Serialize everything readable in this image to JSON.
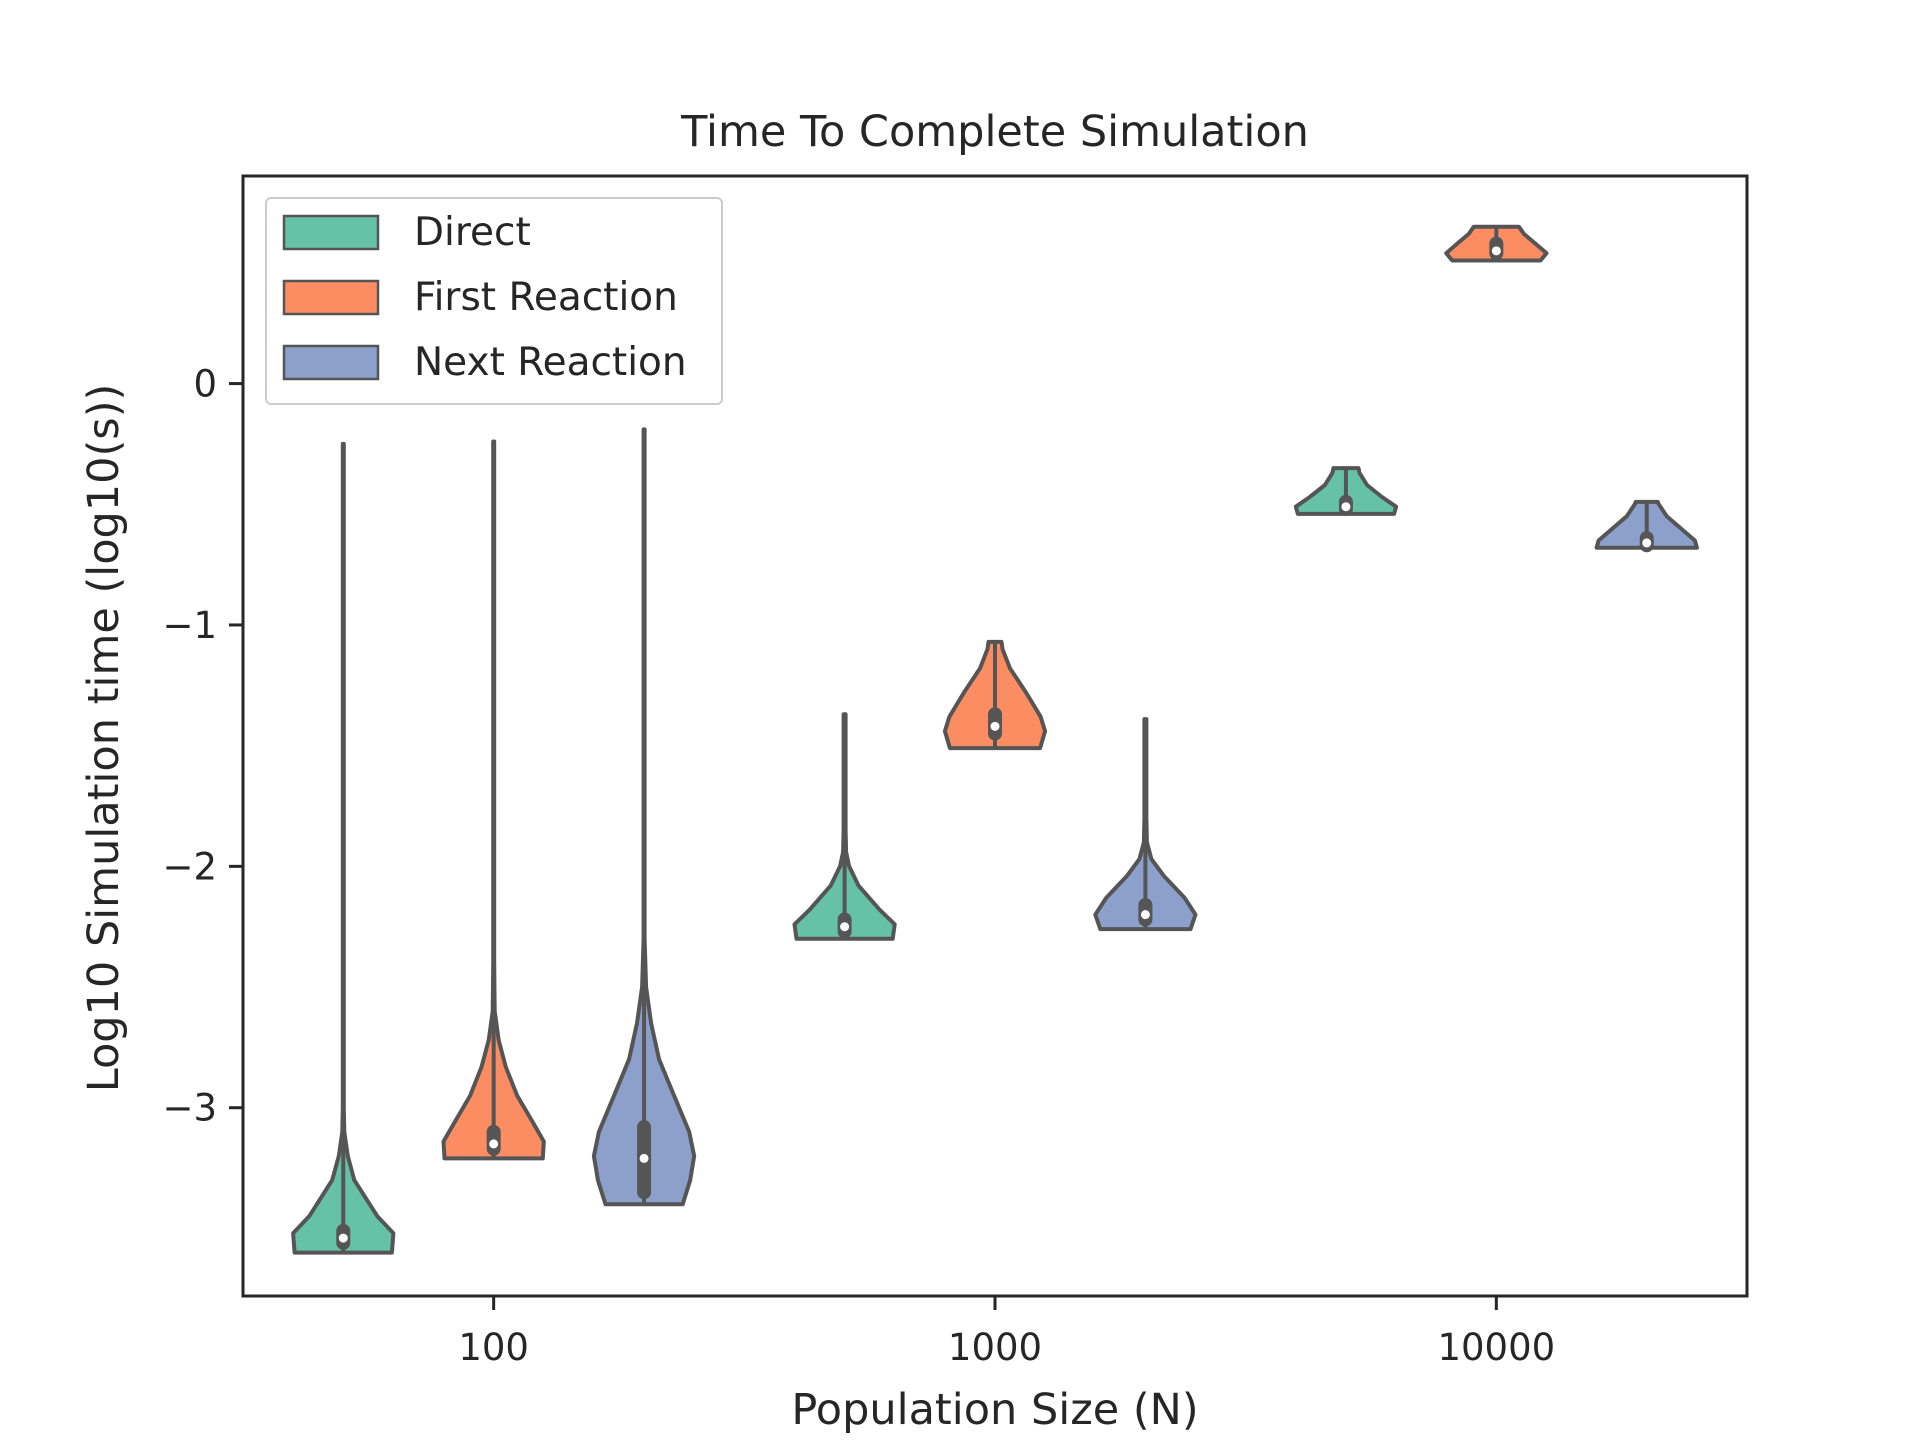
{
  "chart_data": {
    "type": "violin",
    "title": "Time To Complete Simulation",
    "xlabel": "Population Size (N)",
    "ylabel": "Log10 Simulation time (log10(s))",
    "categories": [
      "100",
      "1000",
      "10000"
    ],
    "yticks": [
      0,
      -1,
      -2,
      -3
    ],
    "ytick_labels": [
      "0",
      "−1",
      "−2",
      "−3"
    ],
    "ylim": [
      -3.78,
      0.86
    ],
    "legend": {
      "position": "top-left",
      "entries": [
        "Direct",
        "First Reaction",
        "Next Reaction"
      ]
    },
    "colors": {
      "Direct": "#66c2a5",
      "First Reaction": "#fc8d62",
      "Next Reaction": "#8da0cb",
      "outline": "#555555",
      "axis": "#262626"
    },
    "series": [
      {
        "name": "Direct",
        "violins": [
          {
            "category": "100",
            "min": -3.6,
            "max": -0.25,
            "median": -3.54,
            "q1": -3.56,
            "q3": -3.51,
            "profile": [
              [
                -3.6,
                0.97
              ],
              [
                -3.52,
                1.0
              ],
              [
                -3.45,
                0.68
              ],
              [
                -3.3,
                0.22
              ],
              [
                -3.2,
                0.09
              ],
              [
                -3.1,
                0.02
              ],
              [
                -3.0,
                0.01
              ],
              [
                -0.25,
                0.01
              ]
            ]
          },
          {
            "category": "1000",
            "min": -2.3,
            "max": -1.37,
            "median": -2.25,
            "q1": -2.27,
            "q3": -2.22,
            "profile": [
              [
                -2.3,
                0.96
              ],
              [
                -2.24,
                1.0
              ],
              [
                -2.18,
                0.7
              ],
              [
                -2.08,
                0.28
              ],
              [
                -2.0,
                0.09
              ],
              [
                -1.94,
                0.03
              ],
              [
                -1.85,
                0.02
              ],
              [
                -1.37,
                0.02
              ]
            ]
          },
          {
            "category": "10000",
            "min": -0.54,
            "max": -0.35,
            "median": -0.51,
            "q1": -0.52,
            "q3": -0.49,
            "profile": [
              [
                -0.54,
                0.96
              ],
              [
                -0.51,
                1.0
              ],
              [
                -0.47,
                0.72
              ],
              [
                -0.42,
                0.42
              ],
              [
                -0.37,
                0.27
              ],
              [
                -0.35,
                0.25
              ]
            ]
          }
        ]
      },
      {
        "name": "First Reaction",
        "violins": [
          {
            "category": "100",
            "min": -3.21,
            "max": -0.24,
            "median": -3.15,
            "q1": -3.17,
            "q3": -3.1,
            "profile": [
              [
                -3.21,
                0.98
              ],
              [
                -3.14,
                1.0
              ],
              [
                -3.06,
                0.78
              ],
              [
                -2.95,
                0.47
              ],
              [
                -2.83,
                0.24
              ],
              [
                -2.72,
                0.1
              ],
              [
                -2.6,
                0.02
              ],
              [
                -2.4,
                0.01
              ],
              [
                -0.24,
                0.01
              ]
            ]
          },
          {
            "category": "1000",
            "min": -1.51,
            "max": -1.07,
            "median": -1.42,
            "q1": -1.45,
            "q3": -1.37,
            "profile": [
              [
                -1.51,
                0.9
              ],
              [
                -1.44,
                1.0
              ],
              [
                -1.38,
                0.91
              ],
              [
                -1.28,
                0.62
              ],
              [
                -1.18,
                0.3
              ],
              [
                -1.1,
                0.15
              ],
              [
                -1.07,
                0.13
              ]
            ]
          },
          {
            "category": "10000",
            "min": 0.51,
            "max": 0.65,
            "median": 0.55,
            "q1": 0.54,
            "q3": 0.58,
            "profile": [
              [
                0.51,
                0.88
              ],
              [
                0.54,
                1.0
              ],
              [
                0.58,
                0.78
              ],
              [
                0.62,
                0.55
              ],
              [
                0.65,
                0.45
              ]
            ]
          }
        ]
      },
      {
        "name": "Next Reaction",
        "violins": [
          {
            "category": "100",
            "min": -3.4,
            "max": -0.19,
            "median": -3.21,
            "q1": -3.35,
            "q3": -3.08,
            "profile": [
              [
                -3.4,
                0.77
              ],
              [
                -3.3,
                0.92
              ],
              [
                -3.2,
                1.0
              ],
              [
                -3.1,
                0.9
              ],
              [
                -2.95,
                0.6
              ],
              [
                -2.8,
                0.3
              ],
              [
                -2.65,
                0.14
              ],
              [
                -2.5,
                0.04
              ],
              [
                -2.3,
                0.01
              ],
              [
                -0.19,
                0.01
              ]
            ]
          },
          {
            "category": "1000",
            "min": -2.26,
            "max": -1.39,
            "median": -2.2,
            "q1": -2.22,
            "q3": -2.16,
            "profile": [
              [
                -2.26,
                0.9
              ],
              [
                -2.2,
                1.0
              ],
              [
                -2.13,
                0.78
              ],
              [
                -2.04,
                0.37
              ],
              [
                -1.97,
                0.12
              ],
              [
                -1.9,
                0.03
              ],
              [
                -1.8,
                0.02
              ],
              [
                -1.39,
                0.02
              ]
            ]
          },
          {
            "category": "10000",
            "min": -0.68,
            "max": -0.49,
            "median": -0.66,
            "q1": -0.67,
            "q3": -0.64,
            "profile": [
              [
                -0.68,
                1.0
              ],
              [
                -0.65,
                0.96
              ],
              [
                -0.6,
                0.68
              ],
              [
                -0.55,
                0.4
              ],
              [
                -0.5,
                0.24
              ],
              [
                -0.49,
                0.22
              ]
            ]
          }
        ]
      }
    ]
  }
}
